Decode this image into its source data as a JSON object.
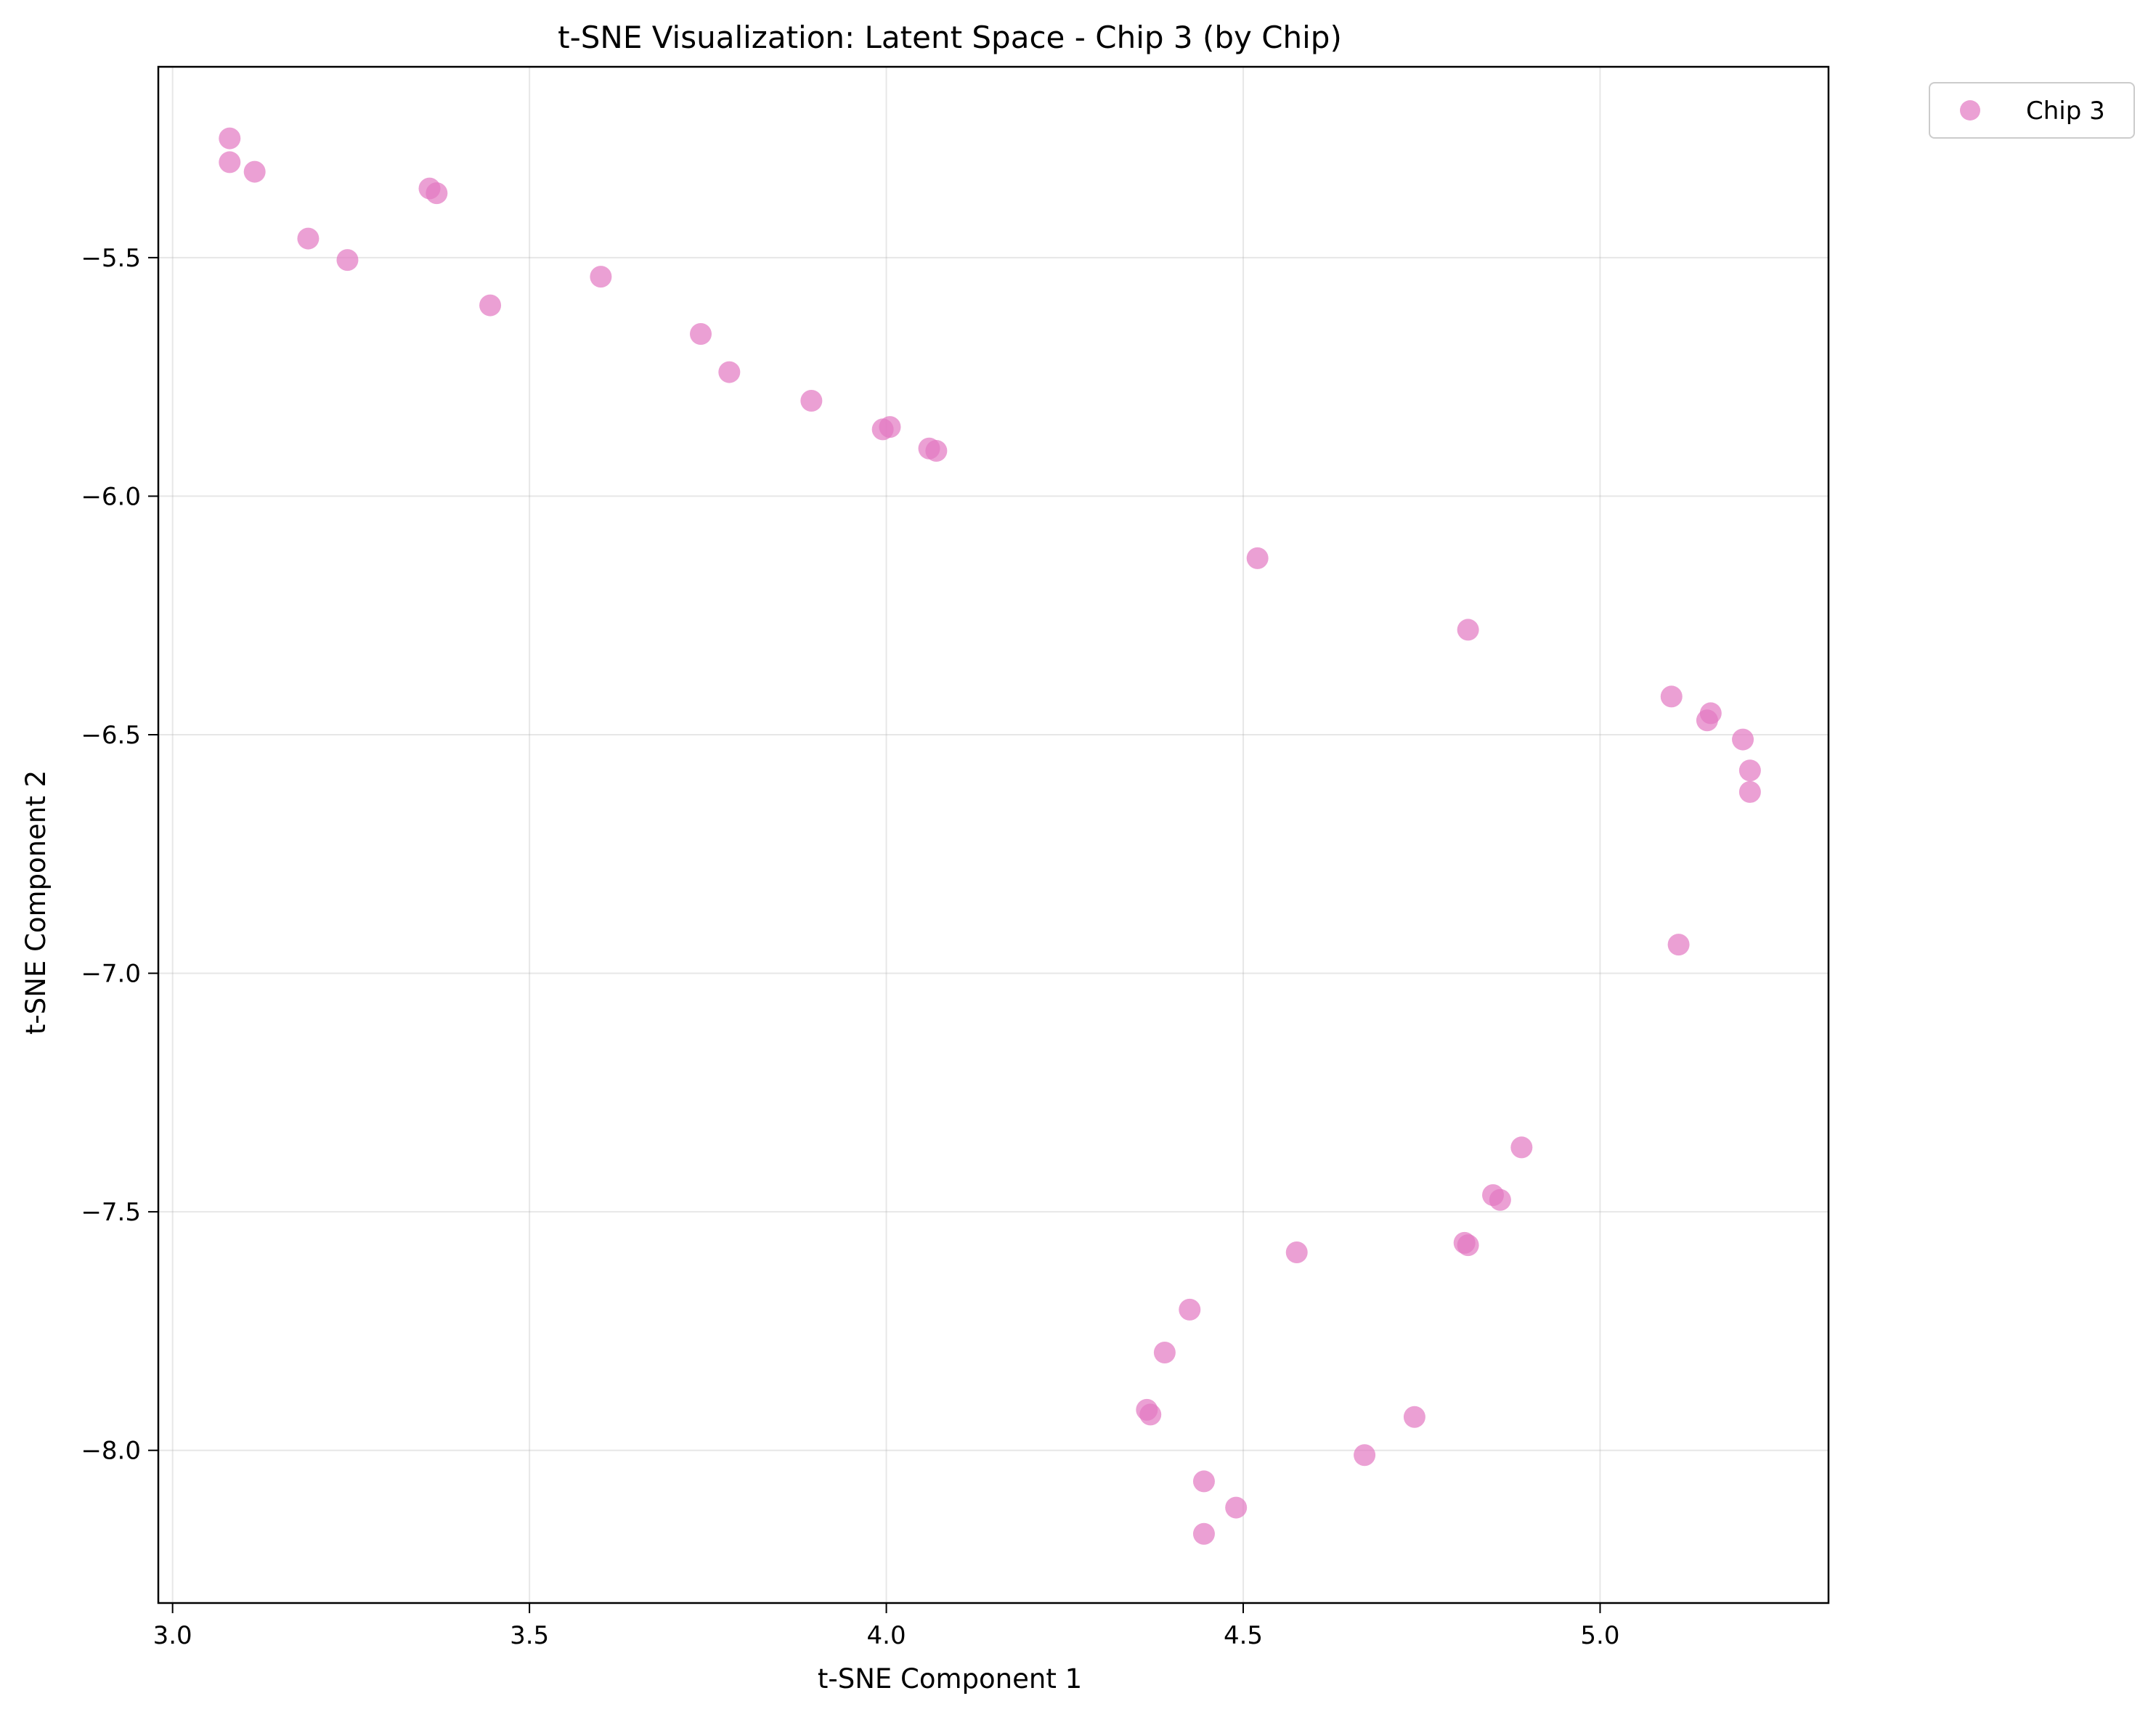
{
  "chart_data": {
    "type": "scatter",
    "title": "t-SNE Visualization: Latent Space - Chip 3 (by Chip)",
    "xlabel": "t-SNE Component 1",
    "ylabel": "t-SNE Component 2",
    "xlim": [
      2.98,
      5.32
    ],
    "ylim": [
      -8.32,
      -5.1
    ],
    "xticks": [
      3.0,
      3.5,
      4.0,
      4.5,
      5.0
    ],
    "xtick_labels": [
      "3.0",
      "3.5",
      "4.0",
      "4.5",
      "5.0"
    ],
    "yticks": [
      -5.5,
      -6.0,
      -6.5,
      -7.0,
      -7.5,
      -8.0
    ],
    "ytick_labels": [
      "−5.5",
      "−6.0",
      "−6.5",
      "−7.0",
      "−7.5",
      "−8.0"
    ],
    "grid": true,
    "legend_position": "outside-top-right",
    "series": [
      {
        "name": "Chip 3",
        "color": "#e377c2",
        "points": [
          [
            3.08,
            -5.25
          ],
          [
            3.08,
            -5.3
          ],
          [
            3.115,
            -5.32
          ],
          [
            3.19,
            -5.46
          ],
          [
            3.245,
            -5.505
          ],
          [
            3.36,
            -5.355
          ],
          [
            3.37,
            -5.365
          ],
          [
            3.445,
            -5.6
          ],
          [
            3.6,
            -5.54
          ],
          [
            3.74,
            -5.66
          ],
          [
            3.78,
            -5.74
          ],
          [
            3.895,
            -5.8
          ],
          [
            3.995,
            -5.86
          ],
          [
            4.005,
            -5.855
          ],
          [
            4.06,
            -5.9
          ],
          [
            4.07,
            -5.905
          ],
          [
            4.52,
            -6.13
          ],
          [
            4.815,
            -6.28
          ],
          [
            5.1,
            -6.42
          ],
          [
            5.155,
            -6.455
          ],
          [
            5.15,
            -6.47
          ],
          [
            5.2,
            -6.51
          ],
          [
            5.21,
            -6.575
          ],
          [
            5.21,
            -6.62
          ],
          [
            5.11,
            -6.94
          ],
          [
            4.89,
            -7.365
          ],
          [
            4.85,
            -7.465
          ],
          [
            4.86,
            -7.475
          ],
          [
            4.81,
            -7.565
          ],
          [
            4.815,
            -7.57
          ],
          [
            4.575,
            -7.585
          ],
          [
            4.425,
            -7.705
          ],
          [
            4.39,
            -7.795
          ],
          [
            4.365,
            -7.915
          ],
          [
            4.37,
            -7.925
          ],
          [
            4.74,
            -7.93
          ],
          [
            4.67,
            -8.01
          ],
          [
            4.445,
            -8.065
          ],
          [
            4.49,
            -8.12
          ],
          [
            4.445,
            -8.175
          ]
        ]
      }
    ]
  }
}
